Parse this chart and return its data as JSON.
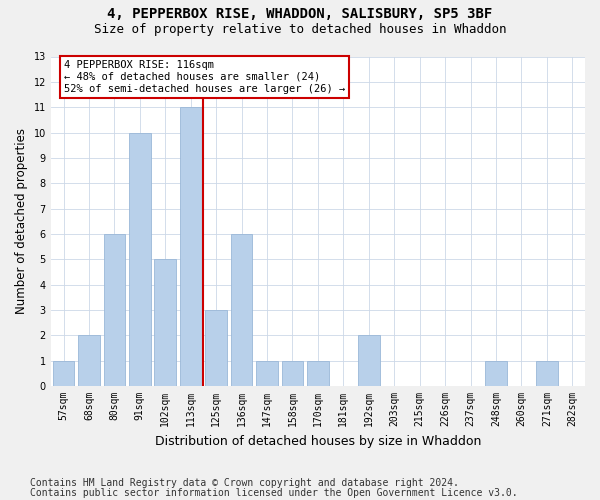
{
  "title_line1": "4, PEPPERBOX RISE, WHADDON, SALISBURY, SP5 3BF",
  "title_line2": "Size of property relative to detached houses in Whaddon",
  "xlabel": "Distribution of detached houses by size in Whaddon",
  "ylabel": "Number of detached properties",
  "categories": [
    "57sqm",
    "68sqm",
    "80sqm",
    "91sqm",
    "102sqm",
    "113sqm",
    "125sqm",
    "136sqm",
    "147sqm",
    "158sqm",
    "170sqm",
    "181sqm",
    "192sqm",
    "203sqm",
    "215sqm",
    "226sqm",
    "237sqm",
    "248sqm",
    "260sqm",
    "271sqm",
    "282sqm"
  ],
  "values": [
    1,
    2,
    6,
    10,
    5,
    11,
    3,
    6,
    1,
    1,
    1,
    0,
    2,
    0,
    0,
    0,
    0,
    1,
    0,
    1,
    0
  ],
  "bar_color": "#b8d0ea",
  "bar_edgecolor": "#9ab8d8",
  "vline_position": 5.5,
  "vline_color": "#cc0000",
  "annotation_text": "4 PEPPERBOX RISE: 116sqm\n← 48% of detached houses are smaller (24)\n52% of semi-detached houses are larger (26) →",
  "annotation_box_color": "white",
  "annotation_box_edgecolor": "#cc0000",
  "ylim": [
    0,
    13
  ],
  "yticks": [
    0,
    1,
    2,
    3,
    4,
    5,
    6,
    7,
    8,
    9,
    10,
    11,
    12,
    13
  ],
  "footer_line1": "Contains HM Land Registry data © Crown copyright and database right 2024.",
  "footer_line2": "Contains public sector information licensed under the Open Government Licence v3.0.",
  "bg_color": "#f0f0f0",
  "plot_bg_color": "white",
  "grid_color": "#ccd8e8",
  "title_fontsize": 10,
  "subtitle_fontsize": 9,
  "tick_fontsize": 7,
  "ylabel_fontsize": 8.5,
  "xlabel_fontsize": 9,
  "footer_fontsize": 7,
  "annotation_fontsize": 7.5
}
